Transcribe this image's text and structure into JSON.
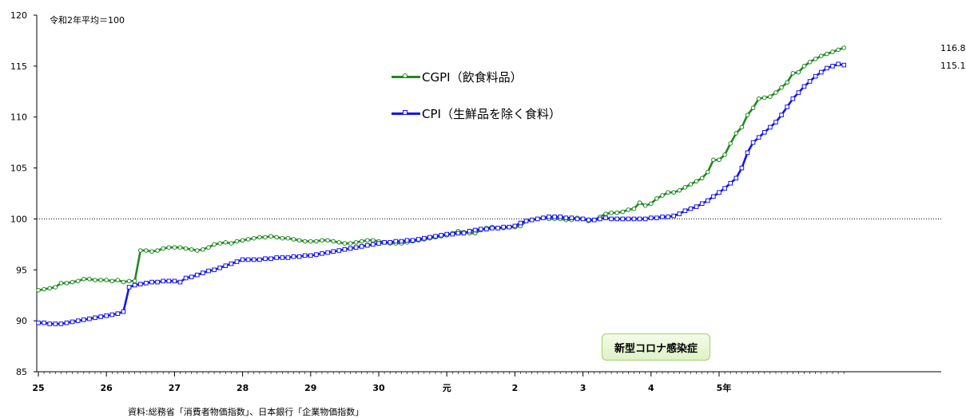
{
  "chart_data": {
    "type": "line",
    "note": "令和2年平均＝100",
    "source": "資料:総務省「消費者物価指数」、日本銀行「企業物価指数」",
    "annotation": "新型コロナ感染症",
    "ylim": [
      85,
      120
    ],
    "y_ticks": [
      "85",
      "90",
      "95",
      "100",
      "105",
      "110",
      "115",
      "120"
    ],
    "x_tick_labels": [
      "25",
      "26",
      "27",
      "28",
      "29",
      "30",
      "元",
      "2",
      "3",
      "4",
      "5年"
    ],
    "reference_line": 100,
    "legend_position": "upper-center",
    "series": [
      {
        "name": "CGPI（飲食料品）",
        "color": "#1e8a1e",
        "marker": "circle",
        "end_label": "116.8",
        "values": [
          93.0,
          93.1,
          93.2,
          93.3,
          93.7,
          93.7,
          93.8,
          93.9,
          94.1,
          94.1,
          94.0,
          94.0,
          94.0,
          93.9,
          94.0,
          93.8,
          93.9,
          93.9,
          96.9,
          96.9,
          96.8,
          96.9,
          97.1,
          97.2,
          97.2,
          97.2,
          97.1,
          97.0,
          96.9,
          97.0,
          97.2,
          97.5,
          97.6,
          97.7,
          97.6,
          97.8,
          97.9,
          98.0,
          98.1,
          98.2,
          98.2,
          98.3,
          98.2,
          98.1,
          98.1,
          98.0,
          97.9,
          97.8,
          97.8,
          97.8,
          97.9,
          97.9,
          97.8,
          97.7,
          97.6,
          97.6,
          97.7,
          97.8,
          97.9,
          97.9,
          97.8,
          97.7,
          97.6,
          97.6,
          97.6,
          97.7,
          97.8,
          97.9,
          98.0,
          98.1,
          98.2,
          98.3,
          98.4,
          98.6,
          98.8,
          98.7,
          98.6,
          98.6,
          98.9,
          99.1,
          99.2,
          99.1,
          99.1,
          99.2,
          99.2,
          99.3,
          99.8,
          99.9,
          100.0,
          100.1,
          100.0,
          100.0,
          100.0,
          99.9,
          99.9,
          100.1,
          100.0,
          99.8,
          99.9,
          100.2,
          100.5,
          100.6,
          100.6,
          100.7,
          100.9,
          101.0,
          101.6,
          101.3,
          101.5,
          102.0,
          102.3,
          102.6,
          102.6,
          102.8,
          103.1,
          103.4,
          103.7,
          104.0,
          104.6,
          105.8,
          105.8,
          106.3,
          107.4,
          108.4,
          109.0,
          110.2,
          110.9,
          111.8,
          111.9,
          112.0,
          112.4,
          112.9,
          113.4,
          114.3,
          114.4,
          115.0,
          115.4,
          115.7,
          116.0,
          116.2,
          116.4,
          116.6,
          116.8
        ]
      },
      {
        "name": "CPI（生鮮品を除く食料）",
        "color": "#1414f0",
        "marker": "square",
        "end_label": "115.1",
        "values": [
          89.8,
          89.8,
          89.7,
          89.7,
          89.7,
          89.8,
          89.9,
          90.0,
          90.1,
          90.2,
          90.3,
          90.4,
          90.5,
          90.6,
          90.7,
          90.9,
          93.3,
          93.5,
          93.6,
          93.7,
          93.8,
          93.8,
          93.9,
          93.9,
          93.9,
          93.8,
          94.2,
          94.3,
          94.5,
          94.7,
          94.9,
          95.0,
          95.2,
          95.4,
          95.6,
          95.8,
          96.0,
          96.0,
          96.0,
          96.0,
          96.1,
          96.1,
          96.2,
          96.2,
          96.2,
          96.3,
          96.3,
          96.4,
          96.4,
          96.5,
          96.6,
          96.7,
          96.8,
          96.9,
          97.0,
          97.1,
          97.2,
          97.3,
          97.4,
          97.5,
          97.6,
          97.7,
          97.7,
          97.8,
          97.8,
          97.9,
          97.9,
          98.0,
          98.1,
          98.2,
          98.3,
          98.4,
          98.5,
          98.5,
          98.6,
          98.6,
          98.8,
          98.9,
          99.0,
          99.0,
          99.1,
          99.1,
          99.2,
          99.2,
          99.3,
          99.6,
          99.8,
          99.9,
          100.0,
          100.1,
          100.2,
          100.2,
          100.2,
          100.1,
          100.1,
          100.0,
          100.0,
          99.9,
          99.9,
          100.0,
          100.1,
          100.0,
          100.0,
          100.0,
          100.0,
          100.0,
          100.0,
          100.0,
          100.1,
          100.1,
          100.2,
          100.2,
          100.3,
          100.5,
          100.8,
          101.0,
          101.2,
          101.5,
          101.8,
          102.2,
          102.6,
          103.0,
          103.5,
          104.0,
          105.0,
          106.5,
          107.5,
          108.0,
          108.5,
          109.0,
          109.5,
          110.2,
          111.0,
          111.8,
          112.4,
          113.0,
          113.5,
          114.0,
          114.4,
          114.8,
          115.0,
          115.2,
          115.1
        ]
      }
    ]
  }
}
